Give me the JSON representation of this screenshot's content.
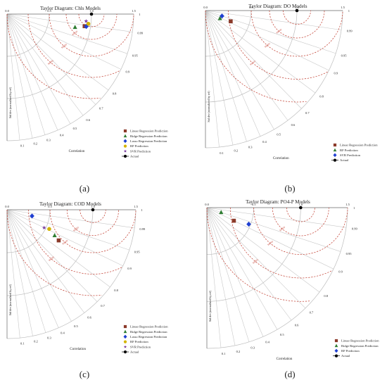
{
  "chart_data": [
    {
      "type": "scatter",
      "title": "Taylor Diagram: Chls Models",
      "panel_label": "(a)",
      "xlabel": "Correlation",
      "ylabel": "Std dev (normalized by ref)",
      "std_ticks": [
        "0.0",
        "0.5",
        "1.0",
        "1.5"
      ],
      "corr_ticks": [
        "1",
        "0.99",
        "0.95",
        "0.9",
        "0.8",
        "0.7",
        "0.6",
        "0.5",
        "0.4",
        "0.3",
        "0.2",
        "0.1"
      ],
      "rmsd_label": "RMSD",
      "series": [
        {
          "name": "Linear Regression Prediction",
          "color": "#8b3a2a",
          "marker": "square",
          "std": 0.93,
          "corr": 0.988
        },
        {
          "name": "Ridge Regression Prediction",
          "color": "#2e7d32",
          "marker": "triangle",
          "std": 0.82,
          "corr": 0.982
        },
        {
          "name": "Lasso Regression Prediction",
          "color": "#1f3fd1",
          "marker": "diamond",
          "std": 0.95,
          "corr": 0.988
        },
        {
          "name": "RF Prediction",
          "color": "#d4b400",
          "marker": "circle",
          "std": 0.97,
          "corr": 0.993
        },
        {
          "name": "SVR Prediction",
          "color": "#7b3fa0",
          "marker": "star",
          "std": 0.94,
          "corr": 0.996
        },
        {
          "name": "Actual",
          "color": "#000000",
          "marker": "circle",
          "std": 1.0,
          "corr": 1.0
        }
      ]
    },
    {
      "type": "scatter",
      "title": "Taylor Diagram: DO Models",
      "panel_label": "(b)",
      "xlabel": "Correlation",
      "ylabel": "Std dev (normalized by ref)",
      "std_ticks": [
        "0.0",
        "0.5",
        "1.0",
        "1.5"
      ],
      "corr_ticks": [
        "1",
        "0.99",
        "0.95",
        "0.9",
        "0.8",
        "0.7",
        "0.6",
        "0.5",
        "0.4",
        "0.3",
        "0.2",
        "0.1"
      ],
      "rmsd_label": "RMSD",
      "series": [
        {
          "name": "Linear Regression Prediction",
          "color": "#8b3a2a",
          "marker": "square",
          "std": 0.3,
          "corr": 0.92
        },
        {
          "name": "RF Prediction",
          "color": "#2e7d32",
          "marker": "triangle",
          "std": 0.18,
          "corr": 0.88
        },
        {
          "name": "SVR Prediction",
          "color": "#1f3fd1",
          "marker": "diamond",
          "std": 0.19,
          "corr": 0.95
        },
        {
          "name": "Actual",
          "color": "#000000",
          "marker": "circle",
          "std": 1.0,
          "corr": 1.0
        }
      ]
    },
    {
      "type": "scatter",
      "title": "Taylor Diagram: COD Models",
      "panel_label": "(c)",
      "xlabel": "Correlation",
      "ylabel": "Std dev (normalized by ref)",
      "std_ticks": [
        "0.0",
        "0.5",
        "1.0",
        "1.5"
      ],
      "corr_ticks": [
        "1",
        "0.99",
        "0.95",
        "0.9",
        "0.8",
        "0.7",
        "0.6",
        "0.5",
        "0.4",
        "0.3",
        "0.2",
        "0.1"
      ],
      "rmsd_label": "RMSD",
      "series": [
        {
          "name": "Linear Regression Prediction",
          "color": "#8b3a2a",
          "marker": "square",
          "std": 0.7,
          "corr": 0.86
        },
        {
          "name": "Ridge Regression Prediction",
          "color": "#2e7d32",
          "marker": "triangle",
          "std": 0.63,
          "corr": 0.88
        },
        {
          "name": "Lasso Regression Prediction",
          "color": "#1f3fd1",
          "marker": "diamond",
          "std": 0.3,
          "corr": 0.97
        },
        {
          "name": "RF Prediction",
          "color": "#d4b400",
          "marker": "circle",
          "std": 0.54,
          "corr": 0.91
        },
        {
          "name": "SVR Prediction",
          "color": "#7b3fa0",
          "marker": "star",
          "std": 0.48,
          "corr": 0.9
        },
        {
          "name": "Actual",
          "color": "#000000",
          "marker": "circle",
          "std": 1.0,
          "corr": 1.0
        }
      ]
    },
    {
      "type": "scatter",
      "title": "Taylor Diagram: PO4-P Models",
      "panel_label": "(d)",
      "xlabel": "Correlation",
      "ylabel": "Std dev (normalized by ref)",
      "std_ticks": [
        "0.0",
        "0.5",
        "1.0",
        "1.5"
      ],
      "corr_ticks": [
        "1",
        "0.99",
        "0.95",
        "0.9",
        "0.8",
        "0.7",
        "0.6",
        "0.5",
        "0.4",
        "0.3",
        "0.2",
        "0.1"
      ],
      "rmsd_label": "RMSD",
      "series": [
        {
          "name": "Linear Regression Prediction",
          "color": "#8b3a2a",
          "marker": "square",
          "std": 0.32,
          "corr": 0.9
        },
        {
          "name": "Ridge Regression Prediction",
          "color": "#2e7d32",
          "marker": "triangle",
          "std": 0.16,
          "corr": 0.95
        },
        {
          "name": "RF Prediction",
          "color": "#1f3fd1",
          "marker": "diamond",
          "std": 0.48,
          "corr": 0.93
        },
        {
          "name": "Actual",
          "color": "#000000",
          "marker": "circle",
          "std": 1.0,
          "corr": 1.0
        }
      ]
    }
  ]
}
